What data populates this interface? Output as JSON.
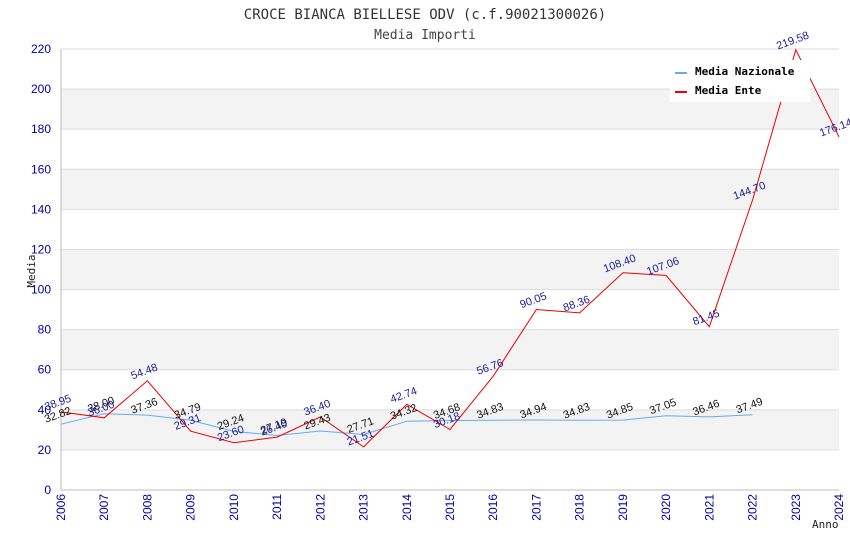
{
  "chart_data": {
    "type": "line",
    "title": "CROCE BIANCA BIELLESE ODV (c.f.90021300026)",
    "subtitle": "Media Importi",
    "xlabel": "Anno",
    "ylabel": "Media",
    "ylim": [
      0,
      220
    ],
    "yticks": [
      "0",
      "20",
      "40",
      "60",
      "80",
      "100",
      "120",
      "140",
      "160",
      "180",
      "200",
      "220"
    ],
    "categories": [
      "2006",
      "2007",
      "2008",
      "2009",
      "2010",
      "2011",
      "2012",
      "2013",
      "2014",
      "2015",
      "2016",
      "2017",
      "2018",
      "2019",
      "2020",
      "2021",
      "2022",
      "2023",
      "2024"
    ],
    "grid": "horizontal bands",
    "legend_position": "top-right",
    "series": [
      {
        "name": "Media Nazionale",
        "color": "#66aaee",
        "values": [
          32.82,
          38.0,
          37.36,
          34.79,
          29.24,
          27.19,
          29.43,
          27.71,
          34.32,
          34.68,
          34.83,
          34.94,
          34.83,
          34.85,
          37.05,
          36.46,
          37.49,
          null,
          null
        ],
        "labels": [
          "32.82",
          "38.00",
          "37.36",
          "34.79",
          "29.24",
          "27.19",
          "29.43",
          "27.71",
          "34.32",
          "34.68",
          "34.83",
          "34.94",
          "34.83",
          "34.85",
          "37.05",
          "36.46",
          "37.49",
          "",
          ""
        ]
      },
      {
        "name": "Media Ente",
        "color": "#ee0000",
        "values": [
          38.95,
          36.0,
          54.48,
          29.31,
          23.6,
          26.4,
          36.4,
          21.51,
          42.74,
          30.18,
          56.76,
          90.05,
          88.36,
          108.4,
          107.06,
          81.45,
          144.7,
          219.58,
          176.14
        ],
        "labels": [
          "38.95",
          "36.00",
          "54.48",
          "29.31",
          "23.60",
          "26.40",
          "36.40",
          "21.51",
          "42.74",
          "30.18",
          "56.76",
          "90.05",
          "88.36",
          "108.40",
          "107.06",
          "81.45",
          "144.70",
          "219.58",
          "176.14"
        ]
      }
    ]
  }
}
